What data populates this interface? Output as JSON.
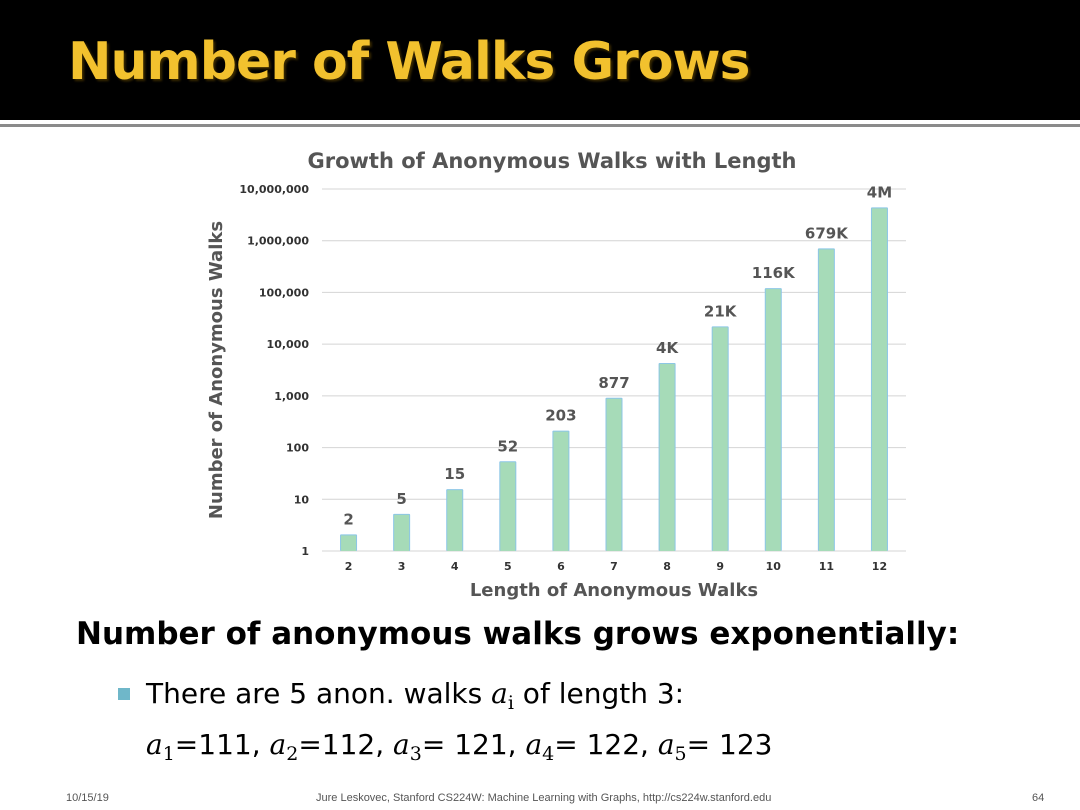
{
  "slide": {
    "title": "Number of Walks Grows",
    "heading": "Number of anonymous walks grows exponentially:",
    "bullet": {
      "text_before": "There are 5 anon. walks ",
      "var": "a",
      "var_sub": "i",
      "text_after": " of length 3:"
    },
    "walks": [
      {
        "var": "a",
        "sub": "1",
        "value": "=111, "
      },
      {
        "var": "a",
        "sub": "2",
        "value": "=112, "
      },
      {
        "var": "a",
        "sub": "3",
        "value": "= 121, "
      },
      {
        "var": "a",
        "sub": "4",
        "value": "= 122, "
      },
      {
        "var": "a",
        "sub": "5",
        "value": "= 123"
      }
    ]
  },
  "footer": {
    "date": "10/15/19",
    "credit": "Jure Leskovec, Stanford CS224W: Machine Learning with Graphs, http://cs224w.stanford.edu",
    "page": "64"
  },
  "colors": {
    "title": "#f2c12e",
    "bar": "#a6dbb8",
    "bar_edge": "#8cc6e6",
    "bullet": "#6fb7c9"
  },
  "chart_data": {
    "type": "bar",
    "title": "Growth of Anonymous Walks with Length",
    "xlabel": "Length of Anonymous Walks",
    "ylabel": "Number of Anonymous Walks",
    "yscale": "log",
    "ylim": [
      1,
      10000000
    ],
    "ytick_labels": [
      "1",
      "10",
      "100",
      "1,000",
      "10,000",
      "100,000",
      "1,000,000",
      "10,000,000"
    ],
    "categories": [
      "2",
      "3",
      "4",
      "5",
      "6",
      "7",
      "8",
      "9",
      "10",
      "11",
      "12"
    ],
    "values": [
      2,
      5,
      15,
      52,
      203,
      877,
      4140,
      21147,
      115975,
      678570,
      4213597
    ],
    "data_labels": [
      "2",
      "5",
      "15",
      "52",
      "203",
      "877",
      "4K",
      "21K",
      "116K",
      "679K",
      "4M"
    ],
    "grid": true
  }
}
